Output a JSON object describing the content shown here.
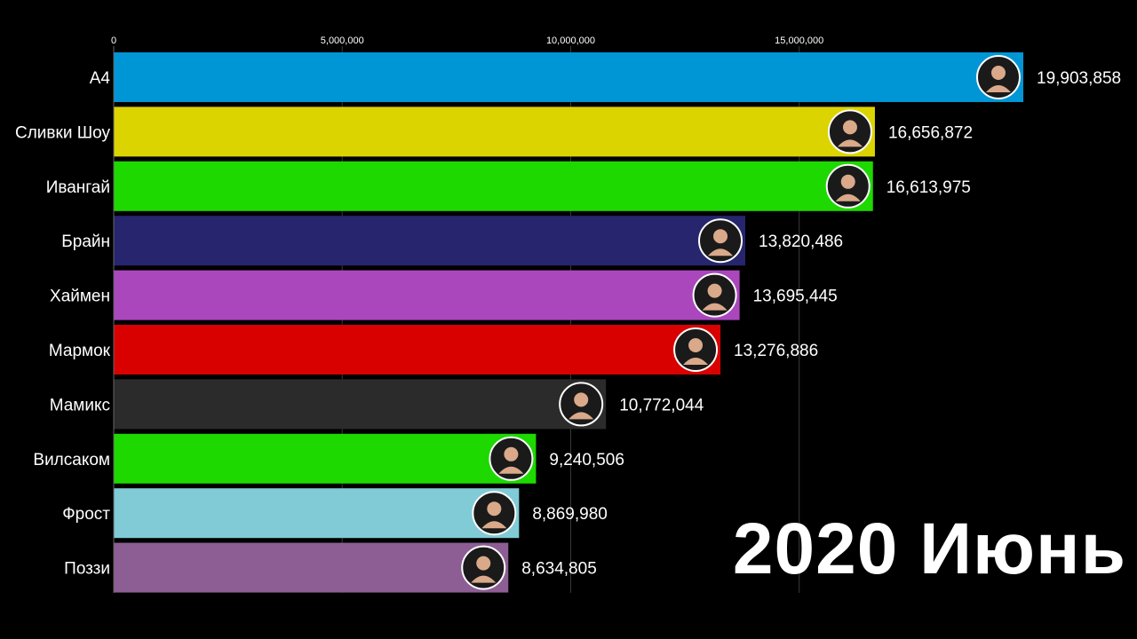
{
  "period_label": "2020 Июнь",
  "chart_data": {
    "type": "bar",
    "orientation": "horizontal",
    "categories": [
      "А4",
      "Сливки Шоу",
      "Ивангай",
      "Брайн",
      "Хаймен",
      "Мармок",
      "Мамикс",
      "Вилсаком",
      "Фрост",
      "Поззи"
    ],
    "values": [
      19903858,
      16656872,
      16613975,
      13820486,
      13695445,
      13276886,
      10772044,
      9240506,
      8869980,
      8634805
    ],
    "value_labels": [
      "19,903,858",
      "16,656,872",
      "16,613,975",
      "13,820,486",
      "13,695,445",
      "13,276,886",
      "10,772,044",
      "9,240,506",
      "8,869,980",
      "8,634,805"
    ],
    "colors": [
      "#0096d6",
      "#dcd400",
      "#1ed900",
      "#26256e",
      "#ab47bc",
      "#d90000",
      "#2b2b2b",
      "#1ed900",
      "#80cbd6",
      "#8c5e94"
    ],
    "avatar_icons": [
      "avatar-a4-icon",
      "avatar-slivki-show-icon",
      "avatar-ivangai-icon",
      "avatar-brain-icon",
      "avatar-haimen-icon",
      "avatar-marmok-icon",
      "avatar-mamix-icon",
      "avatar-wylsacom-icon",
      "avatar-frost-icon",
      "avatar-pozzi-icon"
    ],
    "xlim": [
      0,
      19903858
    ],
    "x_ticks": [
      0,
      5000000,
      10000000,
      15000000
    ],
    "x_tick_labels": [
      "0",
      "5,000,000",
      "10,000,000",
      "15,000,000"
    ],
    "grid": true,
    "axis_position": "top"
  }
}
